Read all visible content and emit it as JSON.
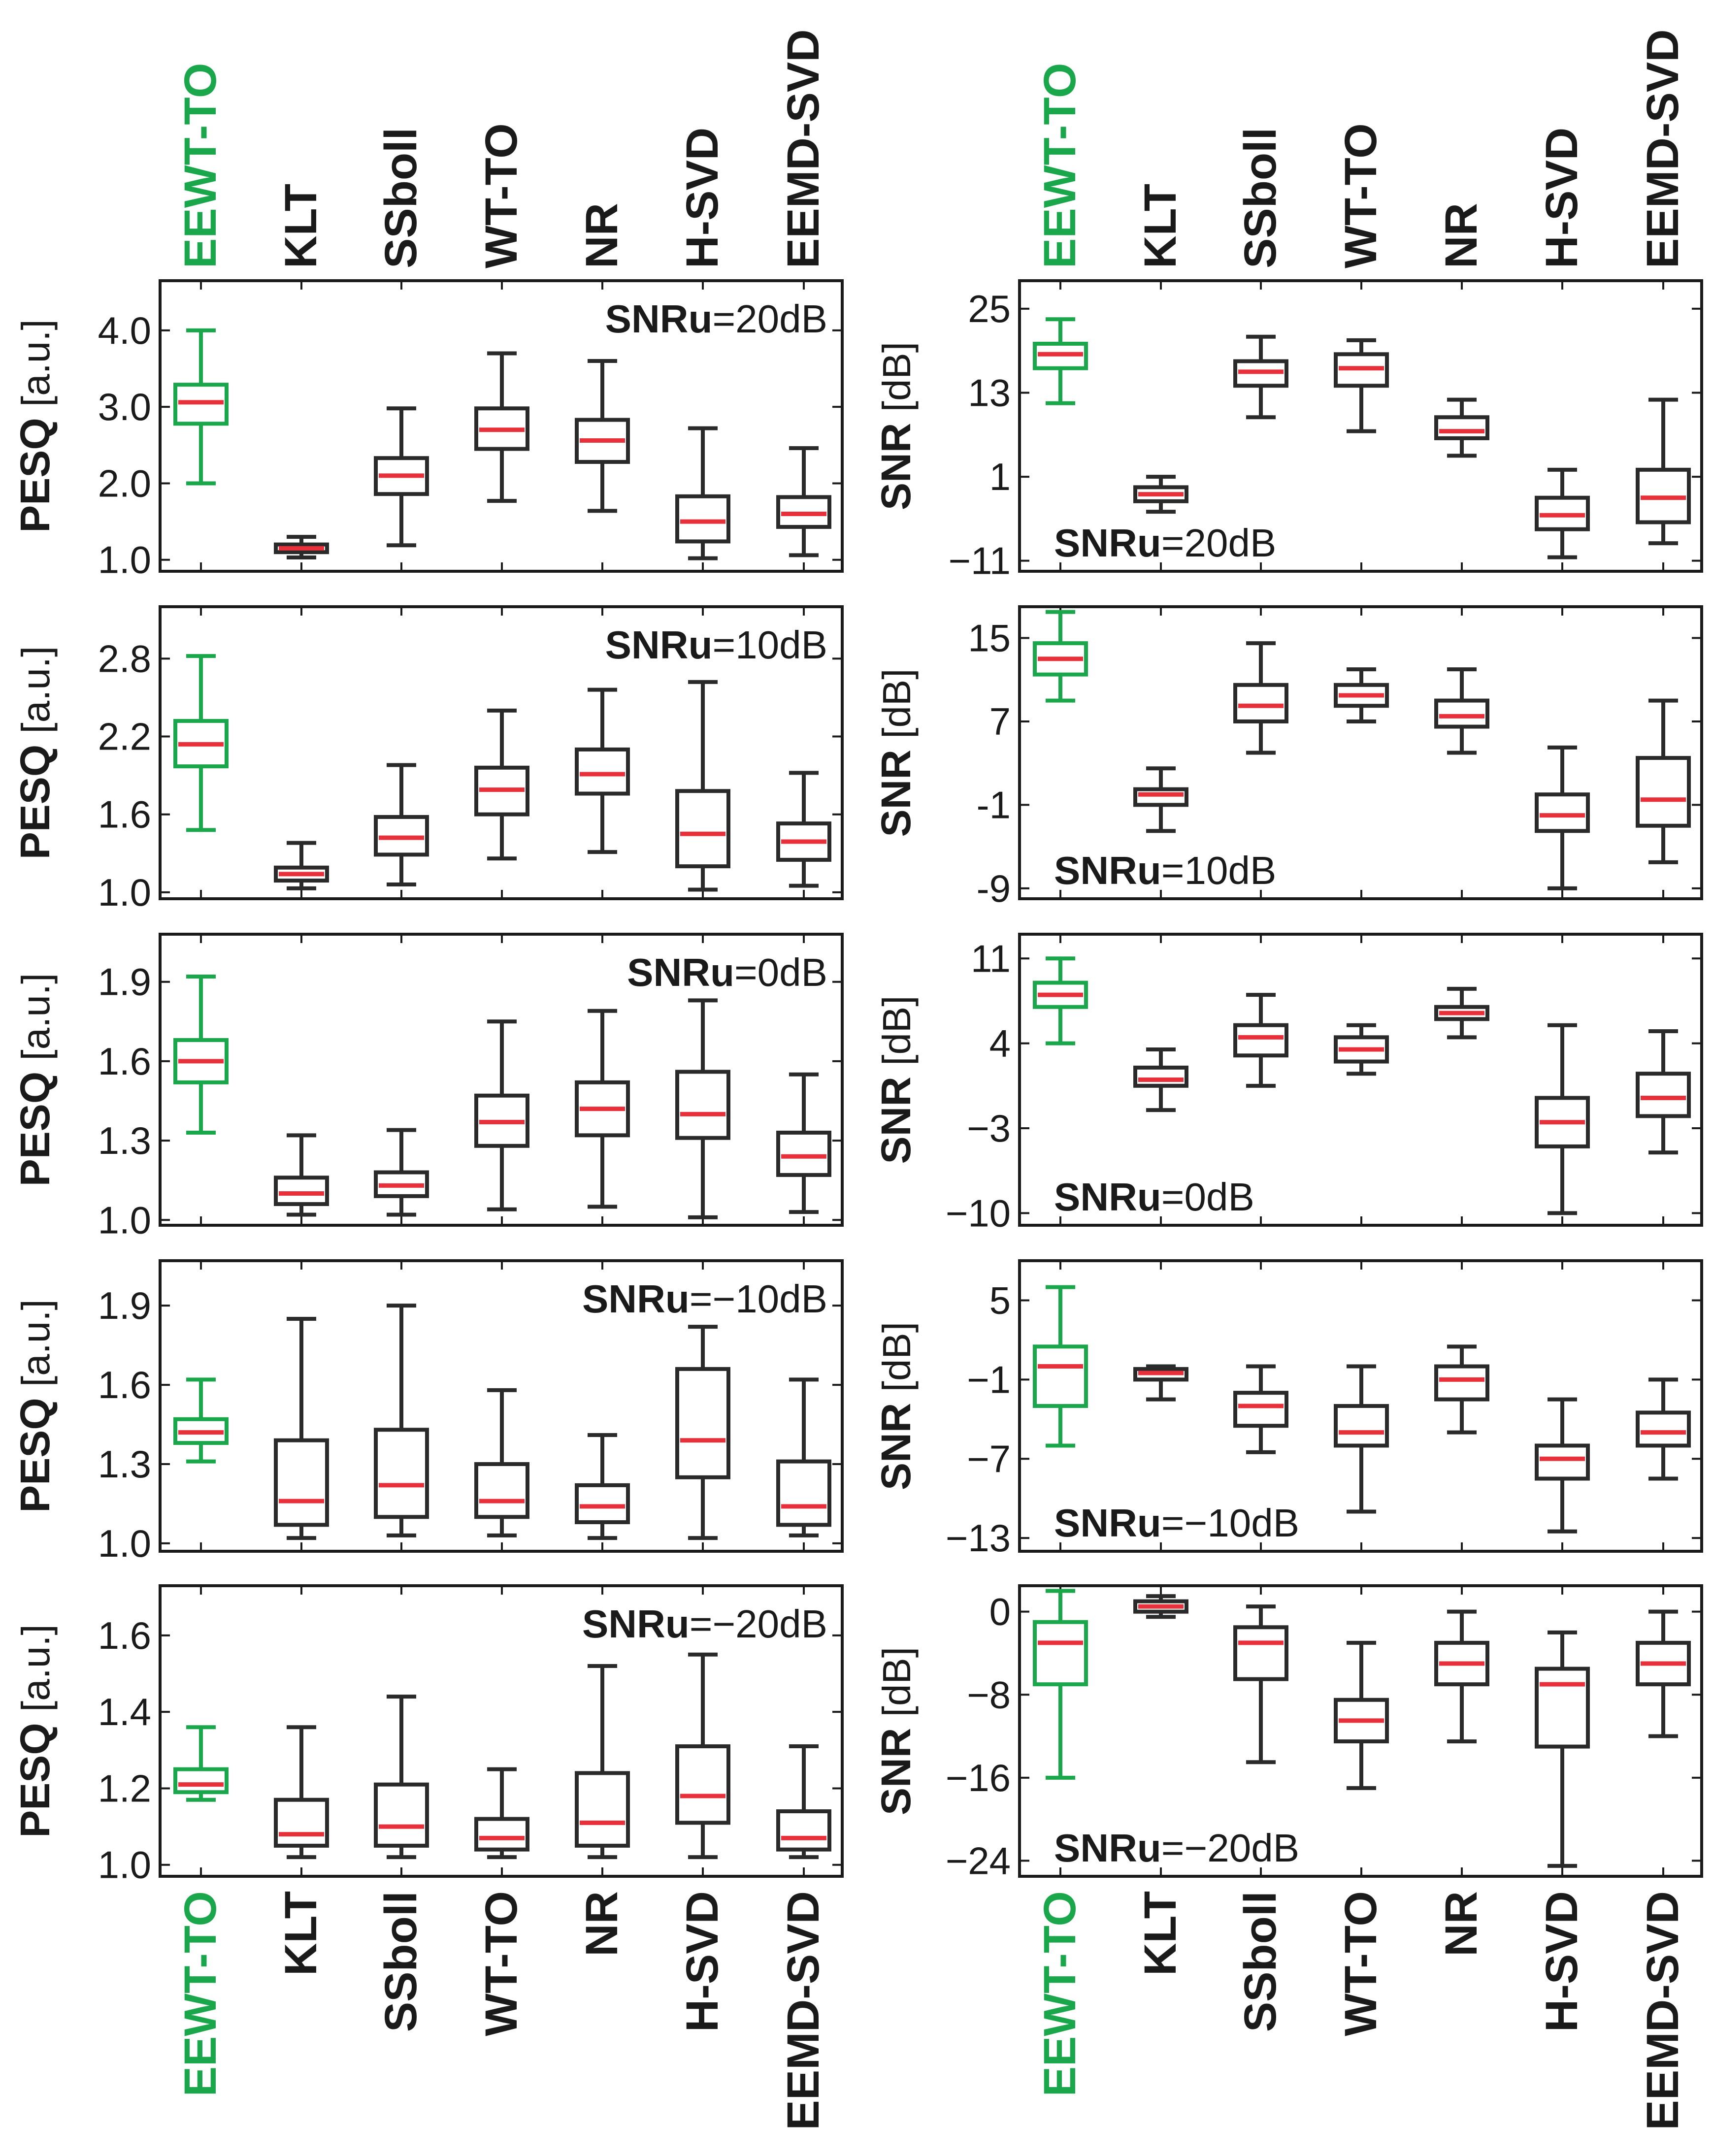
{
  "chart_data": {
    "type": "boxplot",
    "methods": [
      "EEWT-TO",
      "KLT",
      "SSboll",
      "WT-TO",
      "NR",
      "H-SVD",
      "EEMD-SVD"
    ],
    "highlight_method": "EEWT-TO",
    "colors": {
      "highlight": "#1aa64a",
      "box": "#2a2a2a",
      "median": "#e8303a"
    },
    "left_ylabel": {
      "bold": "PESQ",
      "normal": " [a.u.]"
    },
    "right_ylabel": {
      "bold": "SNR",
      "normal": " [dB]"
    },
    "panels": [
      {
        "metric": "PESQ",
        "col": 0,
        "row": 0,
        "label_bold": "SNRu",
        "label_normal": "=20dB",
        "label_pos": "top-right",
        "ylim": [
          0.85,
          4.65
        ],
        "ticks": [
          1.0,
          2.0,
          3.0,
          4.0
        ],
        "tick_labels": [
          "1.0",
          "2.0",
          "3.0",
          "4.0"
        ],
        "boxes": [
          {
            "min": 2.0,
            "q1": 2.78,
            "median": 3.06,
            "q3": 3.29,
            "max": 4.0
          },
          {
            "min": 1.03,
            "q1": 1.1,
            "median": 1.15,
            "q3": 1.2,
            "max": 1.3
          },
          {
            "min": 1.19,
            "q1": 1.86,
            "median": 2.1,
            "q3": 2.33,
            "max": 2.98
          },
          {
            "min": 1.77,
            "q1": 2.45,
            "median": 2.7,
            "q3": 2.98,
            "max": 3.7
          },
          {
            "min": 1.64,
            "q1": 2.28,
            "median": 2.56,
            "q3": 2.83,
            "max": 3.6
          },
          {
            "min": 1.02,
            "q1": 1.24,
            "median": 1.5,
            "q3": 1.83,
            "max": 2.72
          },
          {
            "min": 1.06,
            "q1": 1.43,
            "median": 1.6,
            "q3": 1.82,
            "max": 2.46
          }
        ]
      },
      {
        "metric": "SNR",
        "col": 1,
        "row": 0,
        "label_bold": "SNRu",
        "label_normal": "=20dB",
        "label_pos": "bottom-left",
        "ylim": [
          -12.5,
          29.0
        ],
        "ticks": [
          -11,
          1,
          13,
          25
        ],
        "tick_labels": [
          "−11",
          "1",
          "13",
          "25"
        ],
        "boxes": [
          {
            "min": 11.5,
            "q1": 16.5,
            "median": 18.5,
            "q3": 20.0,
            "max": 23.5
          },
          {
            "min": -4.0,
            "q1": -2.5,
            "median": -1.5,
            "q3": -0.5,
            "max": 1.0
          },
          {
            "min": 9.5,
            "q1": 14.0,
            "median": 16.0,
            "q3": 17.5,
            "max": 21.0
          },
          {
            "min": 7.5,
            "q1": 14.0,
            "median": 16.5,
            "q3": 18.5,
            "max": 20.5
          },
          {
            "min": 4.0,
            "q1": 6.5,
            "median": 7.5,
            "q3": 9.5,
            "max": 12.0
          },
          {
            "min": -10.5,
            "q1": -6.5,
            "median": -4.5,
            "q3": -2.0,
            "max": 2.0
          },
          {
            "min": -8.5,
            "q1": -5.5,
            "median": -2.0,
            "q3": 2.0,
            "max": 12.0
          }
        ]
      },
      {
        "metric": "PESQ",
        "col": 0,
        "row": 1,
        "label_bold": "SNRu",
        "label_normal": "=10dB",
        "label_pos": "top-right",
        "ylim": [
          0.95,
          3.2
        ],
        "ticks": [
          1.0,
          1.6,
          2.2,
          2.8
        ],
        "tick_labels": [
          "1.0",
          "1.6",
          "2.2",
          "2.8"
        ],
        "boxes": [
          {
            "min": 1.48,
            "q1": 1.97,
            "median": 2.14,
            "q3": 2.32,
            "max": 2.82
          },
          {
            "min": 1.03,
            "q1": 1.09,
            "median": 1.14,
            "q3": 1.19,
            "max": 1.38
          },
          {
            "min": 1.06,
            "q1": 1.29,
            "median": 1.42,
            "q3": 1.58,
            "max": 1.98
          },
          {
            "min": 1.26,
            "q1": 1.6,
            "median": 1.79,
            "q3": 1.96,
            "max": 2.4
          },
          {
            "min": 1.31,
            "q1": 1.76,
            "median": 1.91,
            "q3": 2.1,
            "max": 2.56
          },
          {
            "min": 1.02,
            "q1": 1.2,
            "median": 1.45,
            "q3": 1.78,
            "max": 2.62
          },
          {
            "min": 1.05,
            "q1": 1.25,
            "median": 1.39,
            "q3": 1.53,
            "max": 1.92
          }
        ]
      },
      {
        "metric": "SNR",
        "col": 1,
        "row": 1,
        "label_bold": "SNRu",
        "label_normal": "=10dB",
        "label_pos": "bottom-left",
        "ylim": [
          -10.0,
          18.0
        ],
        "ticks": [
          -9,
          -1,
          7,
          15
        ],
        "tick_labels": [
          "-9",
          "-1",
          "7",
          "15"
        ],
        "boxes": [
          {
            "min": 9.0,
            "q1": 11.5,
            "median": 13.0,
            "q3": 14.5,
            "max": 17.5
          },
          {
            "min": -3.5,
            "q1": -1.0,
            "median": 0.0,
            "q3": 0.5,
            "max": 2.5
          },
          {
            "min": 4.0,
            "q1": 7.0,
            "median": 8.5,
            "q3": 10.5,
            "max": 14.5
          },
          {
            "min": 7.0,
            "q1": 8.5,
            "median": 9.5,
            "q3": 10.5,
            "max": 12.0
          },
          {
            "min": 4.0,
            "q1": 6.5,
            "median": 7.5,
            "q3": 9.0,
            "max": 12.0
          },
          {
            "min": -9.0,
            "q1": -3.5,
            "median": -2.0,
            "q3": 0.0,
            "max": 4.5
          },
          {
            "min": -6.5,
            "q1": -3.0,
            "median": -0.5,
            "q3": 3.5,
            "max": 9.0
          }
        ]
      },
      {
        "metric": "PESQ",
        "col": 0,
        "row": 2,
        "label_bold": "SNRu",
        "label_normal": "=0dB",
        "label_pos": "top-right",
        "ylim": [
          0.98,
          2.08
        ],
        "ticks": [
          1.0,
          1.3,
          1.6,
          1.9
        ],
        "tick_labels": [
          "1.0",
          "1.3",
          "1.6",
          "1.9"
        ],
        "boxes": [
          {
            "min": 1.33,
            "q1": 1.52,
            "median": 1.6,
            "q3": 1.68,
            "max": 1.92
          },
          {
            "min": 1.02,
            "q1": 1.06,
            "median": 1.1,
            "q3": 1.16,
            "max": 1.32
          },
          {
            "min": 1.02,
            "q1": 1.09,
            "median": 1.13,
            "q3": 1.18,
            "max": 1.34
          },
          {
            "min": 1.04,
            "q1": 1.28,
            "median": 1.37,
            "q3": 1.47,
            "max": 1.75
          },
          {
            "min": 1.05,
            "q1": 1.32,
            "median": 1.42,
            "q3": 1.52,
            "max": 1.79
          },
          {
            "min": 1.01,
            "q1": 1.31,
            "median": 1.4,
            "q3": 1.56,
            "max": 1.83
          },
          {
            "min": 1.03,
            "q1": 1.17,
            "median": 1.24,
            "q3": 1.33,
            "max": 1.55
          }
        ]
      },
      {
        "metric": "SNR",
        "col": 1,
        "row": 2,
        "label_bold": "SNRu",
        "label_normal": "=0dB",
        "label_pos": "bottom-left",
        "ylim": [
          -11.0,
          13.0
        ],
        "ticks": [
          -10,
          -3,
          4,
          11
        ],
        "tick_labels": [
          "−10",
          "−3",
          "4",
          "11"
        ],
        "boxes": [
          {
            "min": 4.0,
            "q1": 7.0,
            "median": 8.0,
            "q3": 9.0,
            "max": 11.0
          },
          {
            "min": -1.5,
            "q1": 0.5,
            "median": 1.0,
            "q3": 2.0,
            "max": 3.5
          },
          {
            "min": 0.5,
            "q1": 3.0,
            "median": 4.5,
            "q3": 5.5,
            "max": 8.0
          },
          {
            "min": 1.5,
            "q1": 2.5,
            "median": 3.5,
            "q3": 4.5,
            "max": 5.5
          },
          {
            "min": 4.5,
            "q1": 6.0,
            "median": 6.5,
            "q3": 7.0,
            "max": 8.5
          },
          {
            "min": -10.0,
            "q1": -4.5,
            "median": -2.5,
            "q3": -0.5,
            "max": 5.5
          },
          {
            "min": -5.0,
            "q1": -2.0,
            "median": -0.5,
            "q3": 1.5,
            "max": 5.0
          }
        ]
      },
      {
        "metric": "PESQ",
        "col": 0,
        "row": 3,
        "label_bold": "SNRu",
        "label_normal": "=−10dB",
        "label_pos": "top-right",
        "ylim": [
          0.97,
          2.07
        ],
        "ticks": [
          1.0,
          1.3,
          1.6,
          1.9
        ],
        "tick_labels": [
          "1.0",
          "1.3",
          "1.6",
          "1.9"
        ],
        "boxes": [
          {
            "min": 1.31,
            "q1": 1.38,
            "median": 1.42,
            "q3": 1.47,
            "max": 1.62
          },
          {
            "min": 1.02,
            "q1": 1.07,
            "median": 1.16,
            "q3": 1.39,
            "max": 1.85
          },
          {
            "min": 1.03,
            "q1": 1.1,
            "median": 1.22,
            "q3": 1.43,
            "max": 1.9
          },
          {
            "min": 1.03,
            "q1": 1.1,
            "median": 1.16,
            "q3": 1.3,
            "max": 1.58
          },
          {
            "min": 1.02,
            "q1": 1.08,
            "median": 1.14,
            "q3": 1.22,
            "max": 1.41
          },
          {
            "min": 1.02,
            "q1": 1.25,
            "median": 1.39,
            "q3": 1.66,
            "max": 1.82
          },
          {
            "min": 1.03,
            "q1": 1.07,
            "median": 1.14,
            "q3": 1.31,
            "max": 1.62
          }
        ]
      },
      {
        "metric": "SNR",
        "col": 1,
        "row": 3,
        "label_bold": "SNRu",
        "label_normal": "=−10dB",
        "label_pos": "bottom-left",
        "ylim": [
          -14.0,
          8.0
        ],
        "ticks": [
          -13,
          -7,
          -1,
          5
        ],
        "tick_labels": [
          "−13",
          "−7",
          "−1",
          "5"
        ],
        "boxes": [
          {
            "min": -6.0,
            "q1": -3.0,
            "median": 0.0,
            "q3": 1.5,
            "max": 6.0
          },
          {
            "min": -2.5,
            "q1": -1.0,
            "median": -0.5,
            "q3": -0.2,
            "max": 0.0
          },
          {
            "min": -6.5,
            "q1": -4.5,
            "median": -3.0,
            "q3": -2.0,
            "max": 0.0
          },
          {
            "min": -11.0,
            "q1": -6.0,
            "median": -5.0,
            "q3": -3.0,
            "max": 0.0
          },
          {
            "min": -5.0,
            "q1": -2.5,
            "median": -1.0,
            "q3": 0.0,
            "max": 1.5
          },
          {
            "min": -12.5,
            "q1": -8.5,
            "median": -7.0,
            "q3": -6.0,
            "max": -2.5
          },
          {
            "min": -8.5,
            "q1": -6.0,
            "median": -5.0,
            "q3": -3.5,
            "max": -1.0
          }
        ]
      },
      {
        "metric": "PESQ",
        "col": 0,
        "row": 4,
        "label_bold": "SNRu",
        "label_normal": "=−20dB",
        "label_pos": "top-right",
        "ylim": [
          0.97,
          1.73
        ],
        "ticks": [
          1.0,
          1.2,
          1.4,
          1.6
        ],
        "tick_labels": [
          "1.0",
          "1.2",
          "1.4",
          "1.6"
        ],
        "boxes": [
          {
            "min": 1.17,
            "q1": 1.19,
            "median": 1.21,
            "q3": 1.25,
            "max": 1.36
          },
          {
            "min": 1.02,
            "q1": 1.05,
            "median": 1.08,
            "q3": 1.17,
            "max": 1.36
          },
          {
            "min": 1.02,
            "q1": 1.05,
            "median": 1.1,
            "q3": 1.21,
            "max": 1.44
          },
          {
            "min": 1.02,
            "q1": 1.04,
            "median": 1.07,
            "q3": 1.12,
            "max": 1.25
          },
          {
            "min": 1.02,
            "q1": 1.05,
            "median": 1.11,
            "q3": 1.24,
            "max": 1.52
          },
          {
            "min": 1.02,
            "q1": 1.11,
            "median": 1.18,
            "q3": 1.31,
            "max": 1.55
          },
          {
            "min": 1.02,
            "q1": 1.04,
            "median": 1.07,
            "q3": 1.14,
            "max": 1.31
          }
        ]
      },
      {
        "metric": "SNR",
        "col": 1,
        "row": 4,
        "label_bold": "SNRu",
        "label_normal": "=−20dB",
        "label_pos": "bottom-left",
        "ylim": [
          -25.5,
          2.5
        ],
        "ticks": [
          -24,
          -16,
          -8,
          0
        ],
        "tick_labels": [
          "−24",
          "−16",
          "−8",
          "0"
        ],
        "boxes": [
          {
            "min": -16.0,
            "q1": -7.0,
            "median": -3.0,
            "q3": -1.0,
            "max": 2.0
          },
          {
            "min": -0.5,
            "q1": 0.0,
            "median": 0.5,
            "q3": 1.0,
            "max": 1.5
          },
          {
            "min": -14.5,
            "q1": -6.5,
            "median": -3.0,
            "q3": -1.5,
            "max": 0.5
          },
          {
            "min": -17.0,
            "q1": -12.5,
            "median": -10.5,
            "q3": -8.5,
            "max": -3.0
          },
          {
            "min": -12.5,
            "q1": -7.0,
            "median": -5.0,
            "q3": -3.0,
            "max": 0.0
          },
          {
            "min": -24.5,
            "q1": -13.0,
            "median": -7.0,
            "q3": -5.5,
            "max": -2.0
          },
          {
            "min": -12.0,
            "q1": -7.0,
            "median": -5.0,
            "q3": -3.0,
            "max": 0.0
          }
        ]
      }
    ]
  }
}
